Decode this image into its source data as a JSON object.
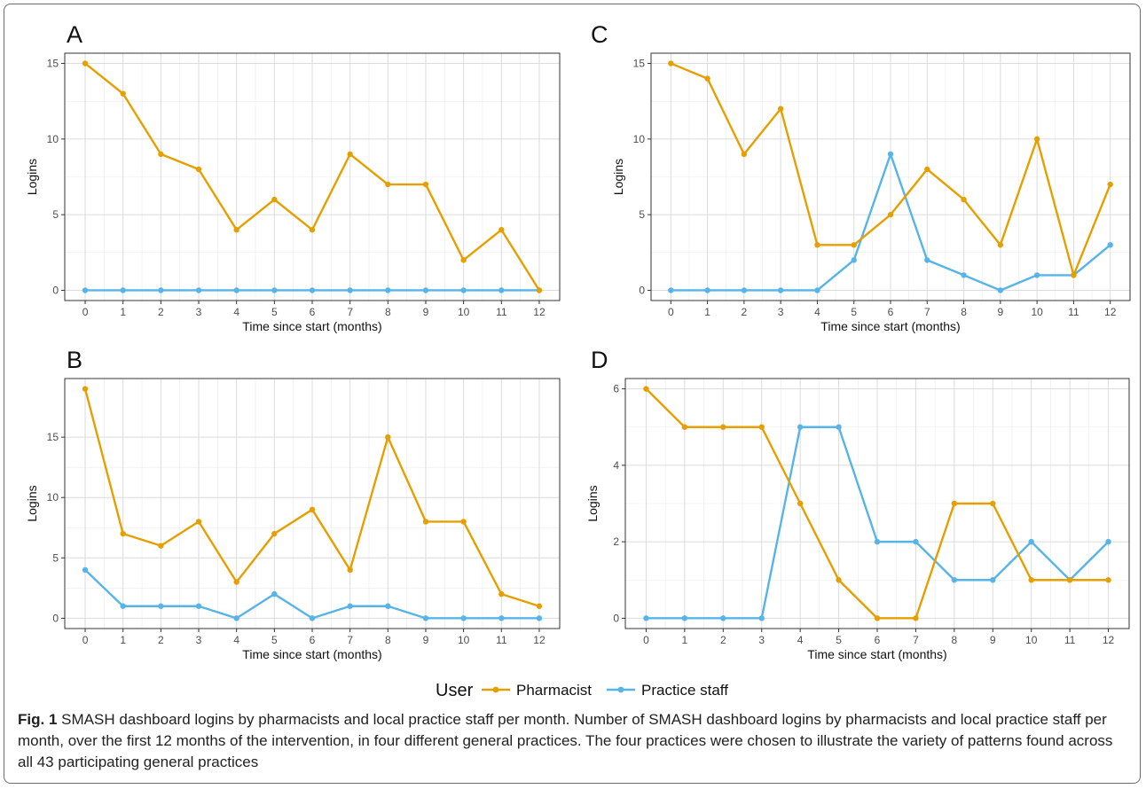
{
  "caption": {
    "label": "Fig. 1",
    "text": "SMASH dashboard logins by pharmacists and local practice staff per month. Number of SMASH dashboard logins by pharmacists and local practice staff per month, over the first 12 months of the intervention, in four different general practices. The four practices were chosen to illustrate the variety of patterns found across all 43 participating general practices"
  },
  "legend": {
    "title": "User",
    "position": "bottom-center",
    "entries": [
      {
        "label": "Pharmacist",
        "color": "#E69F00"
      },
      {
        "label": "Practice staff",
        "color": "#56B4E9"
      }
    ]
  },
  "chart_data": [
    {
      "panel": "A",
      "type": "line",
      "xlabel": "Time since start (months)",
      "ylabel": "Logins",
      "x": [
        0,
        1,
        2,
        3,
        4,
        5,
        6,
        7,
        8,
        9,
        10,
        11,
        12
      ],
      "xlim": [
        0,
        12
      ],
      "ylim": [
        0,
        15
      ],
      "yticks": [
        0,
        5,
        10,
        15
      ],
      "grid": true,
      "series": [
        {
          "name": "Pharmacist",
          "color": "#E69F00",
          "values": [
            15,
            13,
            9,
            8,
            4,
            6,
            4,
            9,
            7,
            7,
            2,
            4,
            0
          ]
        },
        {
          "name": "Practice staff",
          "color": "#56B4E9",
          "values": [
            0,
            0,
            0,
            0,
            0,
            0,
            0,
            0,
            0,
            0,
            0,
            0,
            0
          ]
        }
      ]
    },
    {
      "panel": "C",
      "type": "line",
      "xlabel": "Time since start (months)",
      "ylabel": "Logins",
      "x": [
        0,
        1,
        2,
        3,
        4,
        5,
        6,
        7,
        8,
        9,
        10,
        11,
        12
      ],
      "xlim": [
        0,
        12
      ],
      "ylim": [
        0,
        15
      ],
      "yticks": [
        0,
        5,
        10,
        15
      ],
      "grid": true,
      "series": [
        {
          "name": "Pharmacist",
          "color": "#E69F00",
          "values": [
            15,
            14,
            9,
            12,
            3,
            3,
            5,
            8,
            6,
            3,
            10,
            1,
            7
          ]
        },
        {
          "name": "Practice staff",
          "color": "#56B4E9",
          "values": [
            0,
            0,
            0,
            0,
            0,
            2,
            9,
            2,
            1,
            0,
            1,
            1,
            3
          ]
        }
      ]
    },
    {
      "panel": "B",
      "type": "line",
      "xlabel": "Time since start (months)",
      "ylabel": "Logins",
      "x": [
        0,
        1,
        2,
        3,
        4,
        5,
        6,
        7,
        8,
        9,
        10,
        11,
        12
      ],
      "xlim": [
        0,
        12
      ],
      "ylim": [
        0,
        19
      ],
      "yticks": [
        0,
        5,
        10,
        15
      ],
      "grid": true,
      "series": [
        {
          "name": "Pharmacist",
          "color": "#E69F00",
          "values": [
            19,
            7,
            6,
            8,
            3,
            7,
            9,
            4,
            15,
            8,
            8,
            2,
            1
          ]
        },
        {
          "name": "Practice staff",
          "color": "#56B4E9",
          "values": [
            4,
            1,
            1,
            1,
            0,
            2,
            0,
            1,
            1,
            0,
            0,
            0,
            0
          ]
        }
      ]
    },
    {
      "panel": "D",
      "type": "line",
      "xlabel": "Time since start (months)",
      "ylabel": "Logins",
      "x": [
        0,
        1,
        2,
        3,
        4,
        5,
        6,
        7,
        8,
        9,
        10,
        11,
        12
      ],
      "xlim": [
        0,
        12
      ],
      "ylim": [
        0,
        6
      ],
      "yticks": [
        0,
        2,
        4,
        6
      ],
      "grid": true,
      "series": [
        {
          "name": "Pharmacist",
          "color": "#E69F00",
          "values": [
            6,
            5,
            5,
            5,
            3,
            1,
            0,
            0,
            3,
            3,
            1,
            1,
            1
          ]
        },
        {
          "name": "Practice staff",
          "color": "#56B4E9",
          "values": [
            0,
            0,
            0,
            0,
            5,
            5,
            2,
            2,
            1,
            1,
            2,
            1,
            2
          ]
        }
      ]
    }
  ]
}
